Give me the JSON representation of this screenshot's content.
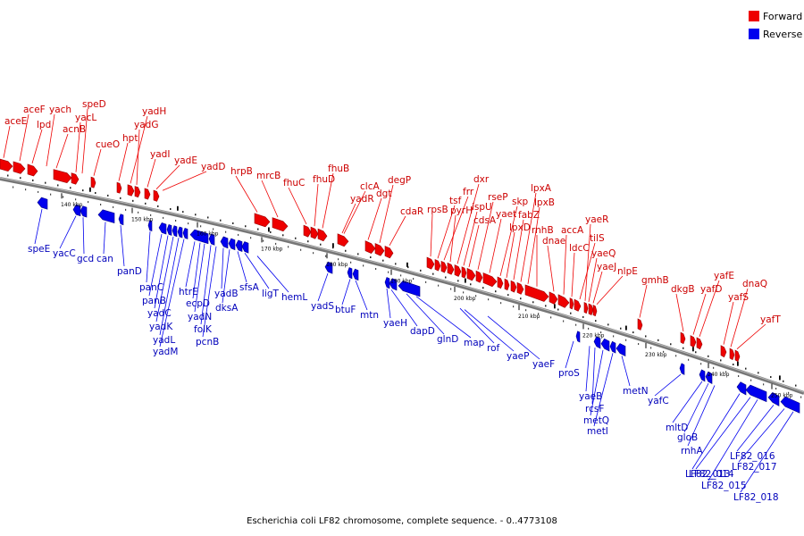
{
  "legend": [
    {
      "label": "Forward",
      "color": "#ee0000"
    },
    {
      "label": "Reverse",
      "color": "#0000ee"
    }
  ],
  "caption": "Escherichia coli LF82 chromosome, complete sequence. - 0..4773108",
  "colors": {
    "forward": "#ee0000",
    "reverse": "#0000ee",
    "backbone": "#666666",
    "text_forward": "#cc0000",
    "text_reverse": "#0000bb"
  },
  "ticks": [
    "140 kbp",
    "150 kbp",
    "160 kbp",
    "170 kbp",
    "180 kbp",
    "190 kbp",
    "200 kbp",
    "210 kbp",
    "220 kbp",
    "230 kbp",
    "240 kbp",
    "250 kbp"
  ],
  "forward_genes": [
    "aceE",
    "aceF",
    "lpd",
    "yach",
    "acnB",
    "yacL",
    "speD",
    "cueO",
    "hpt",
    "yadH",
    "yadG",
    "yadI",
    "yadE",
    "yadD",
    "hrpB",
    "mrcB",
    "fhuC",
    "fhuD",
    "fhuB",
    "yadR",
    "clcA",
    "dgt",
    "degP",
    "cdaR",
    "rpsB",
    "tsf",
    "frr",
    "pyrH",
    "dxr",
    "ispU",
    "cdsA",
    "rseP",
    "yaet",
    "skp",
    "lpxD",
    "fabZ",
    "lpxA",
    "lpxB",
    "rnhB",
    "dnae",
    "accA",
    "ldcC",
    "tilS",
    "yaeR",
    "yaeQ",
    "yaeJ",
    "nlpE",
    "gmhB",
    "dkgB",
    "yafD",
    "yafE",
    "yafS",
    "dnaQ",
    "yafT"
  ],
  "reverse_genes": [
    "speE",
    "yacC",
    "gcd",
    "can",
    "panD",
    "panC",
    "panB",
    "yadC",
    "yadK",
    "yadL",
    "yadM",
    "htrE",
    "ecpD",
    "yadN",
    "folK",
    "pcnB",
    "yadB",
    "dksA",
    "sfsA",
    "ligT",
    "hemL",
    "yadS",
    "btuF",
    "mtn",
    "yaeH",
    "dapD",
    "glnD",
    "map",
    "rof",
    "yaeP",
    "yaeF",
    "proS",
    "yaeB",
    "rcsF",
    "metQ",
    "metI",
    "metN",
    "yafC",
    "mltD",
    "gloB",
    "rnhA",
    "LF82_013",
    "LF82_014",
    "LF82_015",
    "LF82_016",
    "LF82_017",
    "LF82_018"
  ]
}
